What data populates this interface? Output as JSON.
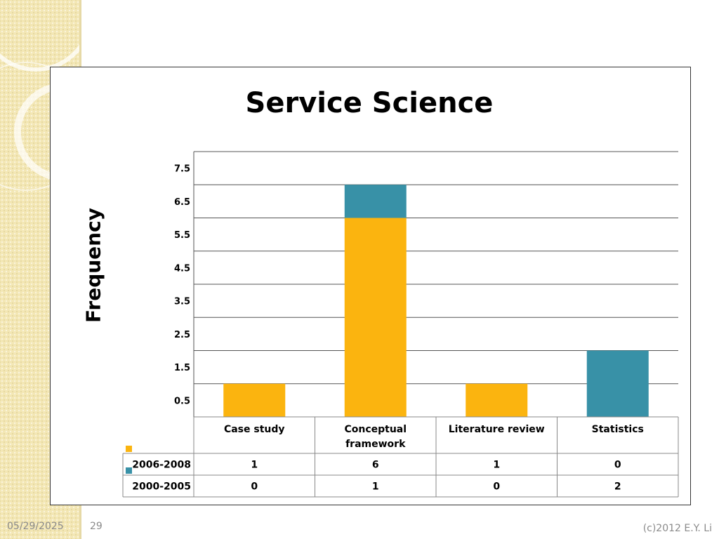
{
  "footer": {
    "date": "05/29/2025",
    "page": "29",
    "copyright": "(c)2012 E.Y. Li"
  },
  "colors": {
    "accent": "#fbb40f",
    "secondary": "#3891a7",
    "band": "#f3e7b5"
  },
  "chart_data": {
    "type": "bar",
    "stacked": true,
    "title": "Service Science",
    "xlabel": "",
    "ylabel": "Frequency",
    "categories": [
      "Case study",
      "Conceptual framework",
      "Literature review",
      "Statistics"
    ],
    "series": [
      {
        "name": "2006-2008",
        "values": [
          1,
          6,
          1,
          0
        ],
        "color": "#fbb40f"
      },
      {
        "name": "2000-2005",
        "values": [
          0,
          1,
          0,
          2
        ],
        "color": "#3891a7"
      }
    ],
    "yticks": [
      "0.5",
      "1.5",
      "2.5",
      "3.5",
      "4.5",
      "5.5",
      "6.5",
      "7.5"
    ],
    "ylim": [
      0,
      8
    ],
    "grid": true,
    "legend": "data-table"
  }
}
